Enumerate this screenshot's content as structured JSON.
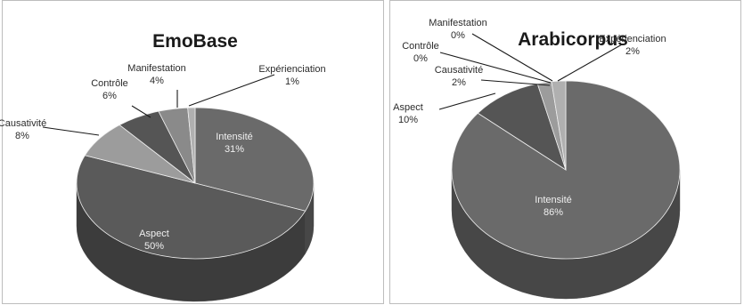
{
  "chart_data": [
    {
      "type": "pie",
      "title": "EmoBase",
      "slices": [
        {
          "label": "Intensité",
          "value": 31,
          "pct": "31%",
          "color": "#6a6a6a",
          "shade": "#474747"
        },
        {
          "label": "Aspect",
          "value": 50,
          "pct": "50%",
          "color": "#5a5a5a",
          "shade": "#3c3c3c"
        },
        {
          "label": "Causativité",
          "value": 8,
          "pct": "8%",
          "color": "#9c9c9c",
          "shade": "#6e6e6e"
        },
        {
          "label": "Contrôle",
          "value": 6,
          "pct": "6%",
          "color": "#555555",
          "shade": "#3a3a3a"
        },
        {
          "label": "Manifestation",
          "value": 4,
          "pct": "4%",
          "color": "#8a8a8a",
          "shade": "#606060"
        },
        {
          "label": "Expérienciation",
          "value": 1,
          "pct": "1%",
          "color": "#b0b0b0",
          "shade": "#808080"
        }
      ]
    },
    {
      "type": "pie",
      "title": "Arabicorpus",
      "slices": [
        {
          "label": "Intensité",
          "value": 86,
          "pct": "86%",
          "color": "#6a6a6a",
          "shade": "#474747"
        },
        {
          "label": "Aspect",
          "value": 10,
          "pct": "10%",
          "color": "#555555",
          "shade": "#3a3a3a"
        },
        {
          "label": "Causativité",
          "value": 2,
          "pct": "2%",
          "color": "#9c9c9c",
          "shade": "#6e6e6e"
        },
        {
          "label": "Contrôle",
          "value": 0,
          "pct": "0%",
          "color": "#7a7a7a",
          "shade": "#555555"
        },
        {
          "label": "Manifestation",
          "value": 0,
          "pct": "0%",
          "color": "#8a8a8a",
          "shade": "#606060"
        },
        {
          "label": "Expérienciation",
          "value": 2,
          "pct": "2%",
          "color": "#b0b0b0",
          "shade": "#808080"
        }
      ]
    }
  ]
}
